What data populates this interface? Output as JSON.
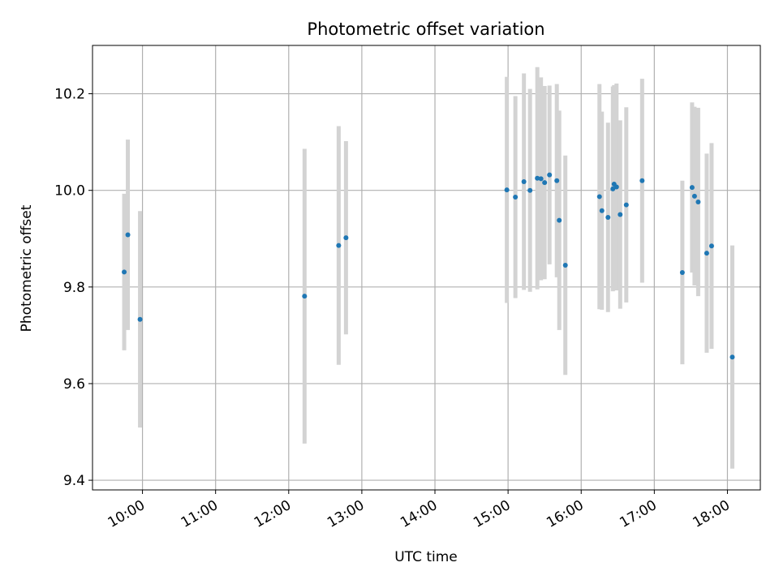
{
  "chart_data": {
    "type": "scatter",
    "title": "Photometric offset variation",
    "xlabel": "UTC time",
    "ylabel": "Photometric offset",
    "x_axis_kind": "time",
    "x_ticks": [
      "10:00",
      "11:00",
      "12:00",
      "13:00",
      "14:00",
      "15:00",
      "16:00",
      "17:00",
      "18:00"
    ],
    "xlim": [
      "09:19",
      "18:27"
    ],
    "ylim": [
      9.38,
      10.3
    ],
    "y_ticks": [
      9.4,
      9.6,
      9.8,
      10.0,
      10.2
    ],
    "grid": true,
    "marker_color": "#1f77b4",
    "errorbar_color": "#d3d3d3",
    "points": [
      {
        "x": "09:45",
        "y": 9.831,
        "err": 0.162
      },
      {
        "x": "09:48",
        "y": 9.908,
        "err": 0.197
      },
      {
        "x": "09:58",
        "y": 9.733,
        "err": 0.224
      },
      {
        "x": "12:13",
        "y": 9.781,
        "err": 0.305
      },
      {
        "x": "12:41",
        "y": 9.886,
        "err": 0.247
      },
      {
        "x": "12:47",
        "y": 9.902,
        "err": 0.2
      },
      {
        "x": "14:59",
        "y": 10.001,
        "err": 0.234
      },
      {
        "x": "15:06",
        "y": 9.986,
        "err": 0.209
      },
      {
        "x": "15:13",
        "y": 10.018,
        "err": 0.224
      },
      {
        "x": "15:18",
        "y": 10.0,
        "err": 0.21
      },
      {
        "x": "15:24",
        "y": 10.025,
        "err": 0.23
      },
      {
        "x": "15:27",
        "y": 10.024,
        "err": 0.21
      },
      {
        "x": "15:30",
        "y": 10.016,
        "err": 0.2
      },
      {
        "x": "15:34",
        "y": 10.032,
        "err": 0.185
      },
      {
        "x": "15:40",
        "y": 10.02,
        "err": 0.2
      },
      {
        "x": "15:42",
        "y": 9.938,
        "err": 0.227
      },
      {
        "x": "15:47",
        "y": 9.845,
        "err": 0.227
      },
      {
        "x": "16:15",
        "y": 9.987,
        "err": 0.233
      },
      {
        "x": "16:17",
        "y": 9.958,
        "err": 0.205
      },
      {
        "x": "16:22",
        "y": 9.944,
        "err": 0.196
      },
      {
        "x": "16:26",
        "y": 10.003,
        "err": 0.212
      },
      {
        "x": "16:27",
        "y": 10.013,
        "err": 0.205
      },
      {
        "x": "16:29",
        "y": 10.007,
        "err": 0.214
      },
      {
        "x": "16:32",
        "y": 9.95,
        "err": 0.195
      },
      {
        "x": "16:37",
        "y": 9.97,
        "err": 0.202
      },
      {
        "x": "16:50",
        "y": 10.02,
        "err": 0.211
      },
      {
        "x": "17:23",
        "y": 9.83,
        "err": 0.19
      },
      {
        "x": "17:31",
        "y": 10.006,
        "err": 0.176
      },
      {
        "x": "17:33",
        "y": 9.988,
        "err": 0.185
      },
      {
        "x": "17:36",
        "y": 9.976,
        "err": 0.195
      },
      {
        "x": "17:43",
        "y": 9.87,
        "err": 0.206
      },
      {
        "x": "17:47",
        "y": 9.885,
        "err": 0.213
      },
      {
        "x": "18:04",
        "y": 9.655,
        "err": 0.231
      }
    ]
  }
}
